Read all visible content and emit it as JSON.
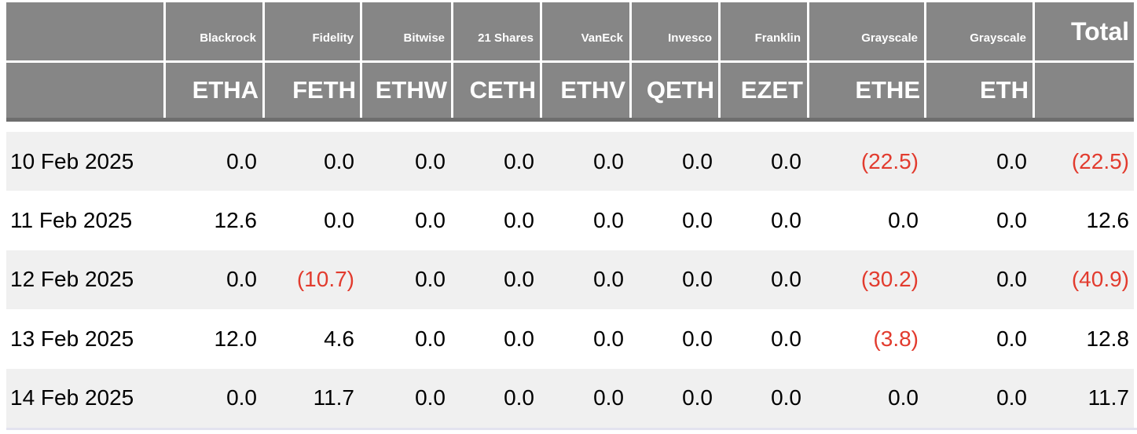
{
  "colors": {
    "header_bg": "#868686",
    "header_border_bottom": "#6e6e6e",
    "header_text": "#ffffff",
    "row_alt_bg": "#f0f0f0",
    "row_bg": "#ffffff",
    "text": "#000000",
    "negative": "#e23b2e",
    "bottom_divider": "#e3e3ef"
  },
  "table": {
    "columns": [
      {
        "issuer": "",
        "ticker": ""
      },
      {
        "issuer": "Blackrock",
        "ticker": "ETHA"
      },
      {
        "issuer": "Fidelity",
        "ticker": "FETH"
      },
      {
        "issuer": "Bitwise",
        "ticker": "ETHW"
      },
      {
        "issuer": "21 Shares",
        "ticker": "CETH"
      },
      {
        "issuer": "VanEck",
        "ticker": "ETHV"
      },
      {
        "issuer": "Invesco",
        "ticker": "QETH"
      },
      {
        "issuer": "Franklin",
        "ticker": "EZET"
      },
      {
        "issuer": "Grayscale",
        "ticker": "ETHE"
      },
      {
        "issuer": "Grayscale",
        "ticker": "ETH"
      },
      {
        "issuer": "Total",
        "ticker": ""
      }
    ],
    "rows": [
      {
        "date": "10 Feb 2025",
        "values": [
          "0.0",
          "0.0",
          "0.0",
          "0.0",
          "0.0",
          "0.0",
          "0.0",
          "(22.5)",
          "0.0"
        ],
        "total": "(22.5)"
      },
      {
        "date": "11 Feb 2025",
        "values": [
          "12.6",
          "0.0",
          "0.0",
          "0.0",
          "0.0",
          "0.0",
          "0.0",
          "0.0",
          "0.0"
        ],
        "total": "12.6"
      },
      {
        "date": "12 Feb 2025",
        "values": [
          "0.0",
          "(10.7)",
          "0.0",
          "0.0",
          "0.0",
          "0.0",
          "0.0",
          "(30.2)",
          "0.0"
        ],
        "total": "(40.9)"
      },
      {
        "date": "13 Feb 2025",
        "values": [
          "12.0",
          "4.6",
          "0.0",
          "0.0",
          "0.0",
          "0.0",
          "0.0",
          "(3.8)",
          "0.0"
        ],
        "total": "12.8"
      },
      {
        "date": "14 Feb 2025",
        "values": [
          "0.0",
          "11.7",
          "0.0",
          "0.0",
          "0.0",
          "0.0",
          "0.0",
          "0.0",
          "0.0"
        ],
        "total": "11.7"
      }
    ]
  },
  "chart_data": {
    "type": "table",
    "columns": [
      {
        "issuer": "Blackrock",
        "ticker": "ETHA"
      },
      {
        "issuer": "Fidelity",
        "ticker": "FETH"
      },
      {
        "issuer": "Bitwise",
        "ticker": "ETHW"
      },
      {
        "issuer": "21 Shares",
        "ticker": "CETH"
      },
      {
        "issuer": "VanEck",
        "ticker": "ETHV"
      },
      {
        "issuer": "Invesco",
        "ticker": "QETH"
      },
      {
        "issuer": "Franklin",
        "ticker": "EZET"
      },
      {
        "issuer": "Grayscale",
        "ticker": "ETHE"
      },
      {
        "issuer": "Grayscale",
        "ticker": "ETH"
      },
      {
        "issuer": "Total",
        "ticker": ""
      }
    ],
    "rows": [
      {
        "date": "10 Feb 2025",
        "values": [
          0.0,
          0.0,
          0.0,
          0.0,
          0.0,
          0.0,
          0.0,
          -22.5,
          0.0
        ],
        "total": -22.5
      },
      {
        "date": "11 Feb 2025",
        "values": [
          12.6,
          0.0,
          0.0,
          0.0,
          0.0,
          0.0,
          0.0,
          0.0,
          0.0
        ],
        "total": 12.6
      },
      {
        "date": "12 Feb 2025",
        "values": [
          0.0,
          -10.7,
          0.0,
          0.0,
          0.0,
          0.0,
          0.0,
          -30.2,
          0.0
        ],
        "total": -40.9
      },
      {
        "date": "13 Feb 2025",
        "values": [
          12.0,
          4.6,
          0.0,
          0.0,
          0.0,
          0.0,
          0.0,
          -3.8,
          0.0
        ],
        "total": 12.8
      },
      {
        "date": "14 Feb 2025",
        "values": [
          0.0,
          11.7,
          0.0,
          0.0,
          0.0,
          0.0,
          0.0,
          0.0,
          0.0
        ],
        "total": 11.7
      }
    ],
    "notes": "negative values rendered in red with parentheses; zebra-striped rows; gray two-row header of issuer names over fund tickers"
  }
}
